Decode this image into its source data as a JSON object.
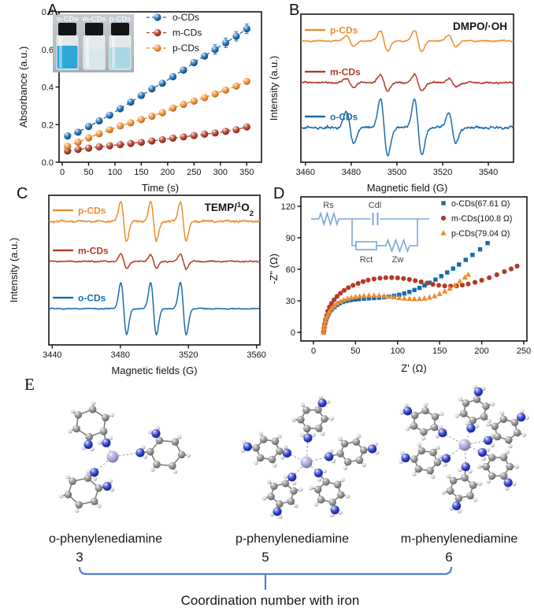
{
  "panels": {
    "A": {
      "label": "A"
    },
    "B": {
      "label": "B"
    },
    "C": {
      "label": "C"
    },
    "D": {
      "label": "D"
    },
    "E": {
      "label": "E",
      "molecules": [
        {
          "name": "o-phenylenediamine",
          "coordination_number": "3",
          "rings": 3
        },
        {
          "name": "p-phenylenediamine",
          "coordination_number": "5",
          "rings": 5
        },
        {
          "name": "m-phenylenediamine",
          "coordination_number": "6",
          "rings": 6
        }
      ],
      "caption": "Coordination number with iron",
      "atom_colors": {
        "Fe": "#a9a2d8",
        "N": "#2838c8",
        "C": "#8b8b8b",
        "H": "#dcdcdc"
      },
      "bracket_color": "#4a7fd4"
    }
  },
  "chart_data": [
    {
      "panel": "A",
      "type": "scatter",
      "xlabel": "Time (s)",
      "ylabel": "Absorbance (a.u.)",
      "xlim": [
        -6,
        378
      ],
      "ylim": [
        0,
        0.8
      ],
      "xticks": [
        0,
        50,
        100,
        150,
        200,
        250,
        300,
        350
      ],
      "yticks": [
        "0.0",
        "0.2",
        "0.4",
        "0.6",
        "0.8"
      ],
      "x": [
        10,
        30,
        50,
        70,
        90,
        110,
        130,
        150,
        170,
        190,
        210,
        230,
        250,
        270,
        290,
        310,
        330,
        350
      ],
      "series": [
        {
          "name": "o-CDs",
          "color": "#1a6bad",
          "values": [
            0.14,
            0.16,
            0.19,
            0.22,
            0.25,
            0.285,
            0.32,
            0.355,
            0.39,
            0.42,
            0.455,
            0.49,
            0.53,
            0.565,
            0.6,
            0.635,
            0.67,
            0.71
          ]
        },
        {
          "name": "m-CDs",
          "color": "#b23b28",
          "values": [
            0.06,
            0.068,
            0.075,
            0.082,
            0.088,
            0.094,
            0.1,
            0.106,
            0.113,
            0.12,
            0.128,
            0.135,
            0.142,
            0.149,
            0.156,
            0.164,
            0.173,
            0.188
          ]
        },
        {
          "name": "p-CDs",
          "color": "#ee8c2e",
          "values": [
            0.085,
            0.107,
            0.13,
            0.152,
            0.173,
            0.193,
            0.21,
            0.227,
            0.245,
            0.264,
            0.288,
            0.308,
            0.325,
            0.344,
            0.364,
            0.384,
            0.405,
            0.43
          ]
        }
      ],
      "legend": [
        "o-CDs",
        "m-CDs",
        "p-CDs"
      ],
      "inset_photo": {
        "vials": [
          {
            "label": "o-CDs",
            "liquid_color": "#2fa6d9"
          },
          {
            "label": "m-CDs",
            "liquid_color": "#d9e8ed"
          },
          {
            "label": "p-CDs",
            "liquid_color": "#a9d8e2"
          }
        ]
      }
    },
    {
      "panel": "B",
      "type": "line",
      "subtype": "EPR spectra",
      "annotation": "DMPO/·OH",
      "xlabel": "Magnetic field (G)",
      "ylabel": "Intensity (a.u.)",
      "xlim": [
        3458,
        3551
      ],
      "xticks": [
        3460,
        3480,
        3500,
        3520,
        3540
      ],
      "peaks_G": [
        3479.5,
        3494.4,
        3509.3,
        3524.2
      ],
      "peak_rel_amps": [
        0.55,
        1,
        1,
        0.55
      ],
      "peak_width_G": 1.6,
      "traces": [
        {
          "name": "p-CDs",
          "color": "#ee8c2e",
          "offset_frac": 0.181,
          "amplitude": 13,
          "noise": 1.3,
          "seed": 11
        },
        {
          "name": "m-CDs",
          "color": "#b23b28",
          "offset_frac": 0.463,
          "amplitude": 10,
          "noise": 1.7,
          "seed": 22
        },
        {
          "name": "o-CDs",
          "color": "#1a6bad",
          "offset_frac": 0.766,
          "amplitude": 36,
          "noise": 2.3,
          "seed": 33
        }
      ]
    },
    {
      "panel": "C",
      "type": "line",
      "subtype": "EPR spectra",
      "annotation_plain": "TEMP/1O2",
      "annotation_parts": [
        {
          "t": "TEMP/"
        },
        {
          "t": "1",
          "style": "sup"
        },
        {
          "t": "O"
        },
        {
          "t": "2",
          "style": "sub"
        }
      ],
      "xlabel": "Magnetic fields (G)",
      "ylabel": "Intensity (a.u.)",
      "xlim": [
        3438,
        3562
      ],
      "xticks": [
        3440,
        3480,
        3520,
        3560
      ],
      "peaks_G": [
        3482,
        3499.5,
        3517
      ],
      "peak_rel_amps": [
        1,
        1,
        1
      ],
      "peak_width_G": 1.7,
      "traces": [
        {
          "name": "p-CDs",
          "color": "#ee8c2e",
          "offset_frac": 0.174,
          "amplitude": 25,
          "noise": 2.0,
          "seed": 44
        },
        {
          "name": "m-CDs",
          "color": "#b23b28",
          "offset_frac": 0.442,
          "amplitude": 9,
          "noise": 1.3,
          "seed": 55
        },
        {
          "name": "o-CDs",
          "color": "#1a6bad",
          "offset_frac": 0.758,
          "amplitude": 33,
          "noise": 0.9,
          "seed": 66
        }
      ]
    },
    {
      "panel": "D",
      "type": "scatter",
      "subtype": "EIS Nyquist plot",
      "xlabel": "Z' (Ω)",
      "ylabel": "-Z\" (Ω)",
      "xticks": [
        0,
        50,
        100,
        150,
        200,
        250
      ],
      "yticks": [
        0,
        30,
        60,
        90,
        120
      ],
      "series": [
        {
          "name": "o-CDs(67.61 Ω)",
          "marker": "square",
          "color": "#1a6bad",
          "points": [
            [
              12,
              0
            ],
            [
              12.5,
              3
            ],
            [
              13,
              6
            ],
            [
              14,
              9
            ],
            [
              15,
              12
            ],
            [
              16.5,
              15
            ],
            [
              18,
              17.5
            ],
            [
              20,
              20
            ],
            [
              22,
              22
            ],
            [
              25,
              24
            ],
            [
              28,
              26
            ],
            [
              31,
              27.5
            ],
            [
              35,
              28.8
            ],
            [
              39,
              29.8
            ],
            [
              44,
              30.6
            ],
            [
              49,
              31.2
            ],
            [
              54,
              31.6
            ],
            [
              60,
              32
            ],
            [
              66,
              32.3
            ],
            [
              72,
              32.6
            ],
            [
              78,
              33
            ],
            [
              84,
              33.4
            ],
            [
              90,
              34
            ],
            [
              96,
              34.8
            ],
            [
              102,
              35.8
            ],
            [
              108,
              37
            ],
            [
              114,
              38.5
            ],
            [
              120,
              40.3
            ],
            [
              126,
              42.3
            ],
            [
              132,
              44.6
            ],
            [
              138,
              47.2
            ],
            [
              145,
              50.2
            ],
            [
              152,
              53.5
            ],
            [
              159,
              57
            ],
            [
              166,
              60.7
            ],
            [
              173,
              64.6
            ],
            [
              181,
              69
            ],
            [
              189,
              73.7
            ],
            [
              198,
              79
            ],
            [
              207,
              85
            ]
          ]
        },
        {
          "name": "m-CDs(100.8 Ω)",
          "marker": "circle",
          "color": "#b23b28",
          "points": [
            [
              12,
              0
            ],
            [
              12.6,
              4
            ],
            [
              13.4,
              8
            ],
            [
              14.4,
              12
            ],
            [
              15.6,
              16
            ],
            [
              17,
              20
            ],
            [
              19,
              24
            ],
            [
              21.5,
              27.5
            ],
            [
              24.5,
              31
            ],
            [
              28,
              34.2
            ],
            [
              32,
              37.2
            ],
            [
              36.5,
              40
            ],
            [
              41.5,
              42.5
            ],
            [
              47,
              44.7
            ],
            [
              53,
              46.6
            ],
            [
              59,
              48.3
            ],
            [
              65,
              49.7
            ],
            [
              72,
              50.8
            ],
            [
              79,
              51.6
            ],
            [
              86,
              52
            ],
            [
              93,
              52.1
            ],
            [
              100,
              51.8
            ],
            [
              107,
              51.2
            ],
            [
              114,
              50.3
            ],
            [
              121,
              49.2
            ],
            [
              128,
              48
            ],
            [
              135,
              46.8
            ],
            [
              142,
              45.7
            ],
            [
              149,
              44.8
            ],
            [
              156,
              44.2
            ],
            [
              163,
              44
            ],
            [
              170,
              44.2
            ],
            [
              177,
              44.9
            ],
            [
              184,
              46
            ],
            [
              192,
              47.6
            ],
            [
              200,
              49.6
            ],
            [
              209,
              52
            ],
            [
              218,
              54.8
            ],
            [
              227,
              57.8
            ],
            [
              235,
              60.4
            ],
            [
              242,
              63
            ]
          ]
        },
        {
          "name": "p-CDs(79.04 Ω)",
          "marker": "triangle",
          "color": "#ee8c2e",
          "points": [
            [
              12,
              0
            ],
            [
              12.6,
              3.5
            ],
            [
              13.4,
              7
            ],
            [
              14.4,
              10.5
            ],
            [
              15.6,
              14
            ],
            [
              17,
              17
            ],
            [
              19,
              20
            ],
            [
              21.5,
              22.8
            ],
            [
              24.5,
              25.2
            ],
            [
              28,
              27.3
            ],
            [
              32,
              29.2
            ],
            [
              36,
              30.8
            ],
            [
              40.5,
              32
            ],
            [
              45,
              33
            ],
            [
              50,
              33.8
            ],
            [
              55,
              34.4
            ],
            [
              60,
              34.8
            ],
            [
              66,
              35.1
            ],
            [
              72,
              35.2
            ],
            [
              78,
              35
            ],
            [
              84,
              34.6
            ],
            [
              90,
              34
            ],
            [
              96,
              33.4
            ],
            [
              102,
              32.8
            ],
            [
              108,
              32.3
            ],
            [
              114,
              31.9
            ],
            [
              120,
              31.7
            ],
            [
              126,
              31.8
            ],
            [
              132,
              32.3
            ],
            [
              138,
              33.2
            ],
            [
              144,
              34.6
            ],
            [
              150,
              36.6
            ],
            [
              156,
              39
            ],
            [
              162,
              41.8
            ],
            [
              168,
              45
            ],
            [
              174,
              48.5
            ],
            [
              180,
              52.3
            ],
            [
              184,
              55
            ]
          ]
        }
      ],
      "circuit": {
        "elements": [
          "Rs",
          "Cdl",
          "Rct",
          "Zw"
        ],
        "color": "#7aa7d9"
      }
    }
  ]
}
